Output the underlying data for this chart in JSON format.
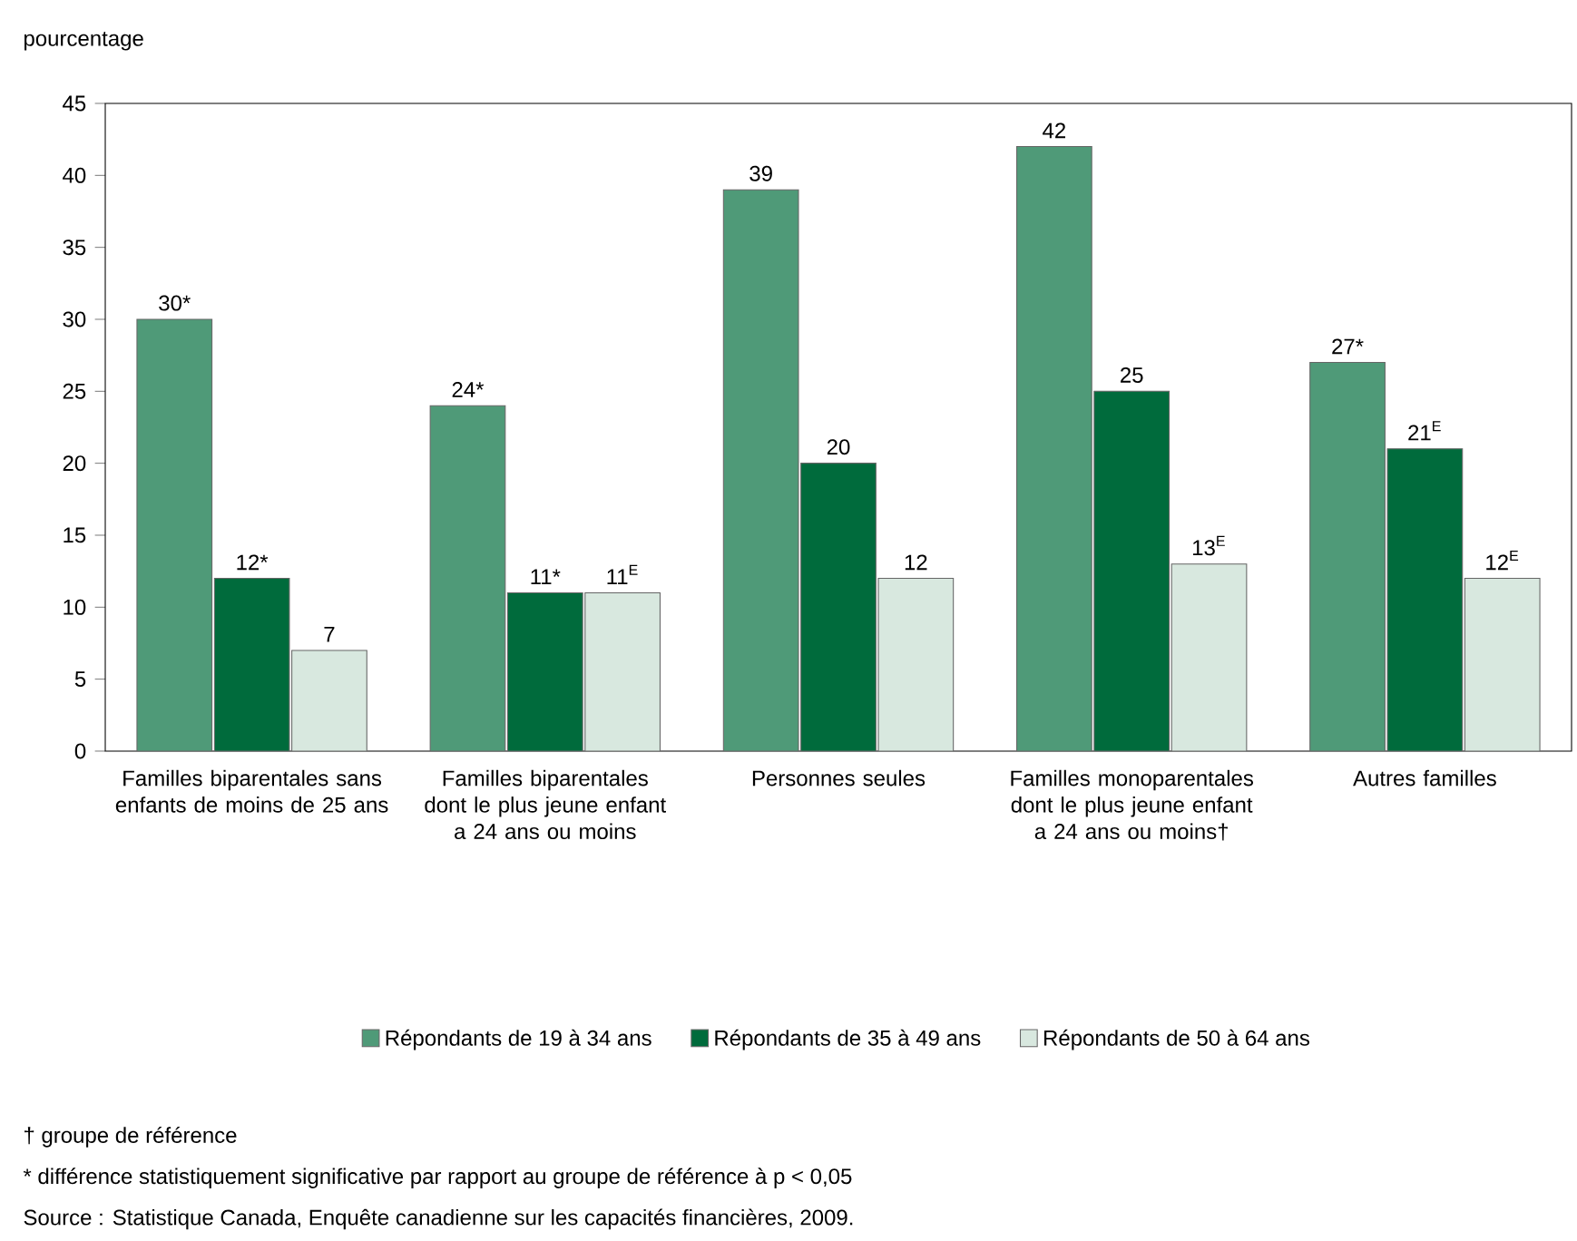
{
  "chart_data": {
    "type": "bar",
    "ylabel": "pourcentage",
    "categories": [
      "Familles biparentales sans enfants de moins de 25 ans",
      "Familles biparentales dont le plus jeune enfant a 24 ans ou moins",
      "Personnes seules",
      "Familles monoparentales dont le plus jeune enfant a 24 ans ou moins†",
      "Autres familles"
    ],
    "series": [
      {
        "name": "Répondants de 19 à 34 ans",
        "color": "#4f9a78",
        "values": [
          30,
          24,
          39,
          42,
          27
        ],
        "value_labels": [
          "30*",
          "24*",
          "39",
          "42",
          "27*"
        ]
      },
      {
        "name": "Répondants de 35 à 49 ans",
        "color": "#006b3c",
        "values": [
          12,
          11,
          20,
          25,
          21
        ],
        "value_labels": [
          "12*",
          "11*",
          "20",
          "25",
          "21$^{E}$"
        ]
      },
      {
        "name": "Répondants de 50 à 64 ans",
        "color": "#d8e8df",
        "values": [
          7,
          11,
          12,
          13,
          12
        ],
        "value_labels": [
          "7",
          "11$^{E}$",
          "12",
          "13$^{E}$",
          "12$^{E}$"
        ]
      }
    ],
    "ylim": [
      0,
      45
    ],
    "yticks": [
      0,
      5,
      10,
      15,
      20,
      25,
      30,
      35,
      40,
      45
    ],
    "legend": "bottom",
    "grid": false,
    "annotations": [
      "† groupe de référence",
      "* différence statistiquement significative par rapport au groupe de référence à p < 0,05",
      "Source : Statistique Canada, Enquête canadienne sur les capacités financières, 2009."
    ]
  }
}
